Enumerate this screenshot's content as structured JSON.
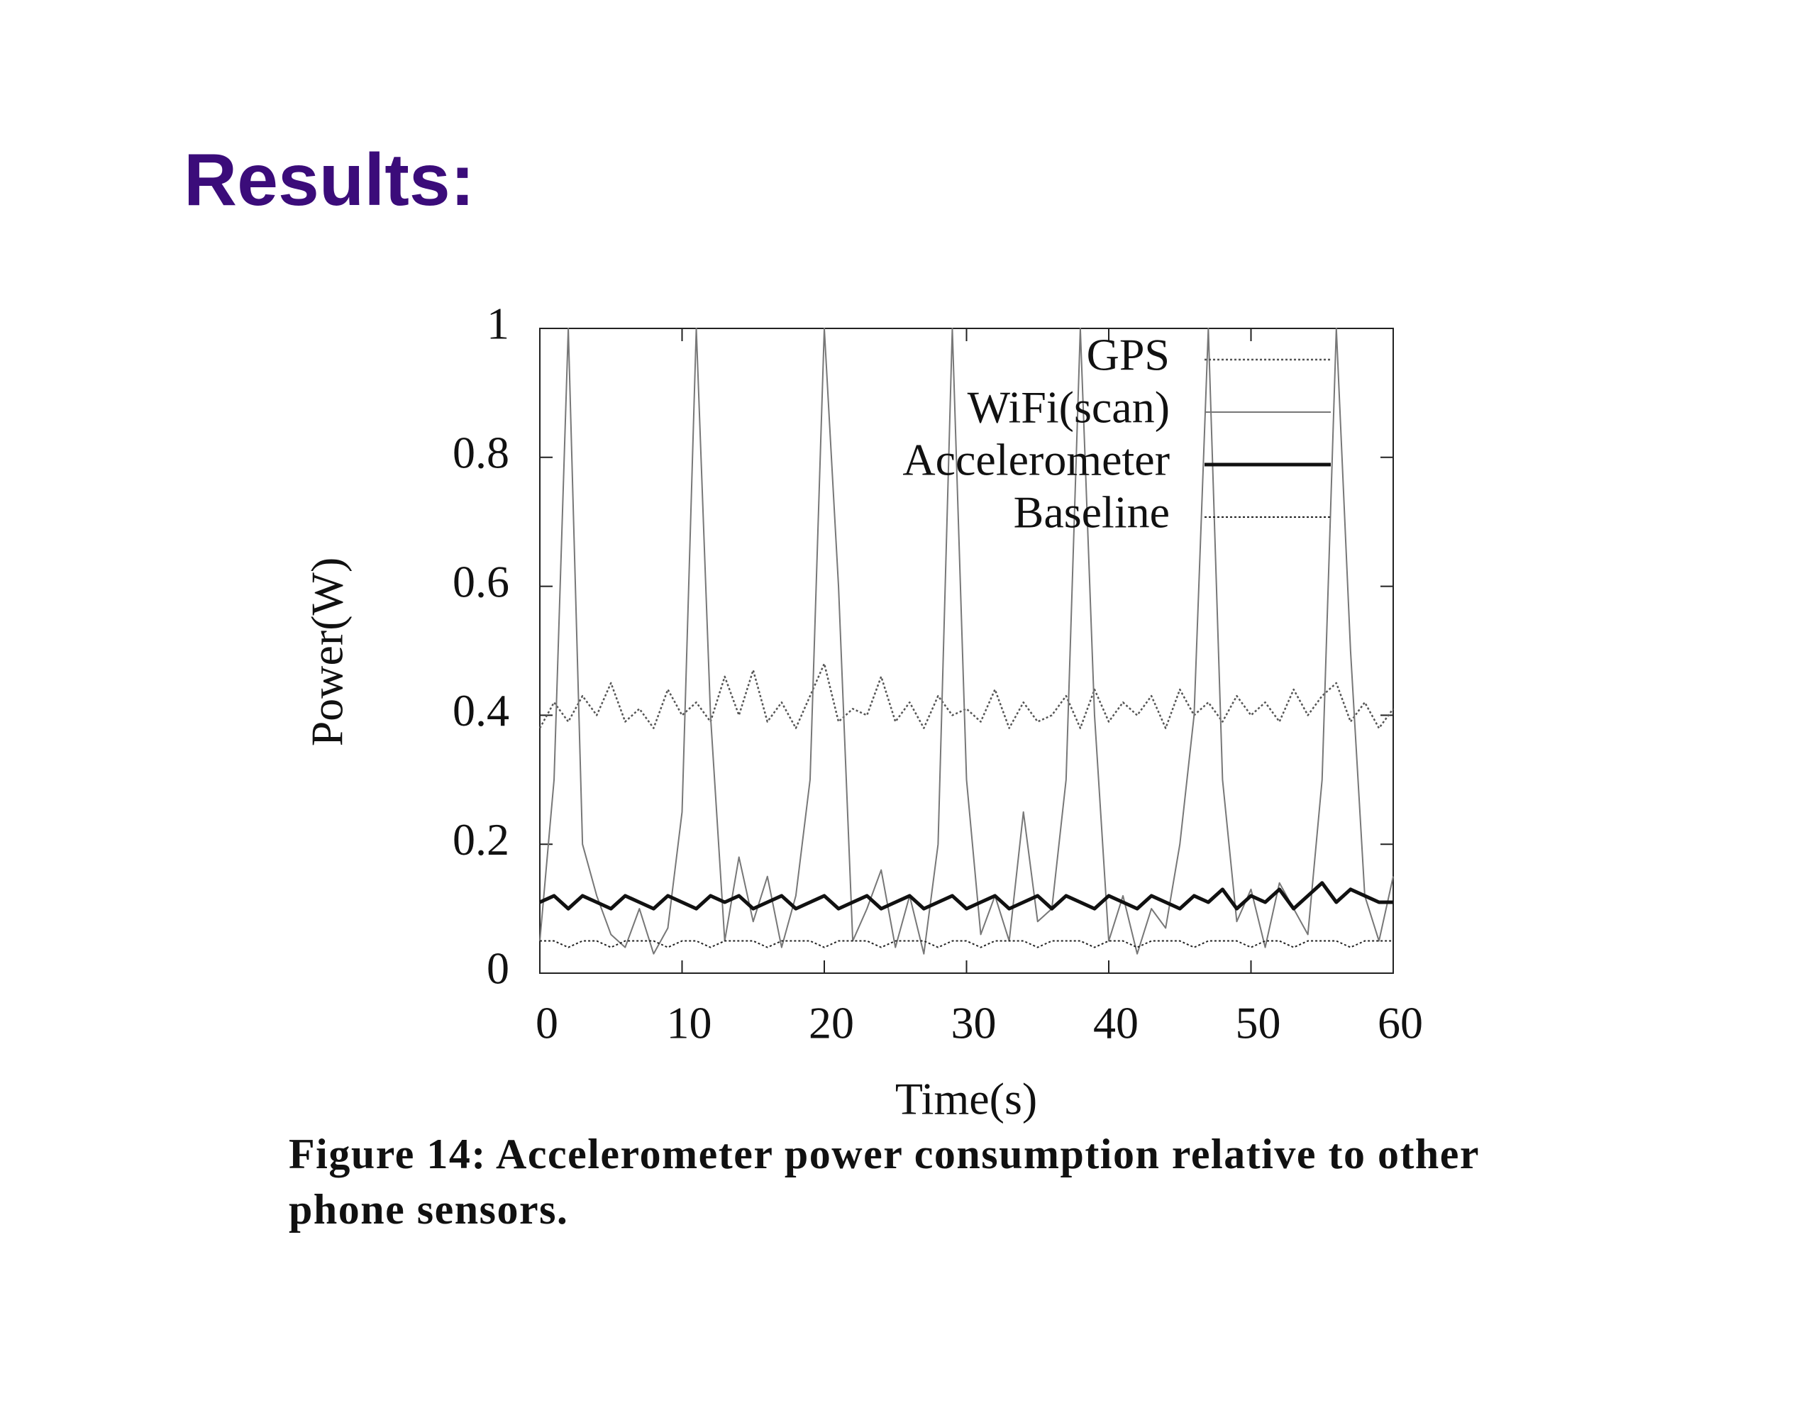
{
  "slide_title": "Results:",
  "caption": "Figure 14: Accelerometer power consumption relative to other phone sensors.",
  "chart_data": {
    "type": "line",
    "xlabel": "Time(s)",
    "ylabel": "Power(W)",
    "x": [
      0,
      1,
      2,
      3,
      4,
      5,
      6,
      7,
      8,
      9,
      10,
      11,
      12,
      13,
      14,
      15,
      16,
      17,
      18,
      19,
      20,
      21,
      22,
      23,
      24,
      25,
      26,
      27,
      28,
      29,
      30,
      31,
      32,
      33,
      34,
      35,
      36,
      37,
      38,
      39,
      40,
      41,
      42,
      43,
      44,
      45,
      46,
      47,
      48,
      49,
      50,
      51,
      52,
      53,
      54,
      55,
      56,
      57,
      58,
      59,
      60
    ],
    "series": [
      {
        "name": "GPS",
        "color": "#555555",
        "dash": "dotted",
        "values": [
          0.38,
          0.42,
          0.39,
          0.43,
          0.4,
          0.45,
          0.39,
          0.41,
          0.38,
          0.44,
          0.4,
          0.42,
          0.39,
          0.46,
          0.4,
          0.47,
          0.39,
          0.42,
          0.38,
          0.43,
          0.48,
          0.39,
          0.41,
          0.4,
          0.46,
          0.39,
          0.42,
          0.38,
          0.43,
          0.4,
          0.41,
          0.39,
          0.44,
          0.38,
          0.42,
          0.39,
          0.4,
          0.43,
          0.38,
          0.44,
          0.39,
          0.42,
          0.4,
          0.43,
          0.38,
          0.44,
          0.4,
          0.42,
          0.39,
          0.43,
          0.4,
          0.42,
          0.39,
          0.44,
          0.4,
          0.43,
          0.45,
          0.39,
          0.42,
          0.38,
          0.41
        ]
      },
      {
        "name": "WiFi(scan)",
        "color": "#777777",
        "dash": "solid",
        "values": [
          0.05,
          0.3,
          1,
          0.2,
          0.12,
          0.06,
          0.04,
          0.1,
          0.03,
          0.07,
          0.25,
          1,
          0.4,
          0.05,
          0.18,
          0.08,
          0.15,
          0.04,
          0.12,
          0.3,
          1,
          0.6,
          0.05,
          0.1,
          0.16,
          0.04,
          0.12,
          0.03,
          0.2,
          1,
          0.3,
          0.06,
          0.12,
          0.05,
          0.25,
          0.08,
          0.1,
          0.3,
          1,
          0.4,
          0.05,
          0.12,
          0.03,
          0.1,
          0.07,
          0.2,
          0.4,
          1,
          0.3,
          0.08,
          0.13,
          0.04,
          0.14,
          0.1,
          0.06,
          0.3,
          1,
          0.5,
          0.12,
          0.05,
          0.15
        ]
      },
      {
        "name": "Accelerometer",
        "color": "#111111",
        "dash": "solid",
        "values": [
          0.11,
          0.12,
          0.1,
          0.12,
          0.11,
          0.1,
          0.12,
          0.11,
          0.1,
          0.12,
          0.11,
          0.1,
          0.12,
          0.11,
          0.12,
          0.1,
          0.11,
          0.12,
          0.1,
          0.11,
          0.12,
          0.1,
          0.11,
          0.12,
          0.1,
          0.11,
          0.12,
          0.1,
          0.11,
          0.12,
          0.1,
          0.11,
          0.12,
          0.1,
          0.11,
          0.12,
          0.1,
          0.12,
          0.11,
          0.1,
          0.12,
          0.11,
          0.1,
          0.12,
          0.11,
          0.1,
          0.12,
          0.11,
          0.13,
          0.1,
          0.12,
          0.11,
          0.13,
          0.1,
          0.12,
          0.14,
          0.11,
          0.13,
          0.12,
          0.11,
          0.11
        ]
      },
      {
        "name": "Baseline",
        "color": "#222222",
        "dash": "dotted",
        "values": [
          0.05,
          0.05,
          0.04,
          0.05,
          0.05,
          0.04,
          0.05,
          0.05,
          0.05,
          0.04,
          0.05,
          0.05,
          0.04,
          0.05,
          0.05,
          0.05,
          0.04,
          0.05,
          0.05,
          0.05,
          0.04,
          0.05,
          0.05,
          0.05,
          0.04,
          0.05,
          0.05,
          0.05,
          0.04,
          0.05,
          0.05,
          0.04,
          0.05,
          0.05,
          0.05,
          0.04,
          0.05,
          0.05,
          0.05,
          0.04,
          0.05,
          0.05,
          0.04,
          0.05,
          0.05,
          0.05,
          0.04,
          0.05,
          0.05,
          0.05,
          0.04,
          0.05,
          0.05,
          0.04,
          0.05,
          0.05,
          0.05,
          0.04,
          0.05,
          0.05,
          0.05
        ]
      }
    ],
    "xlim": [
      0,
      60
    ],
    "xticks": [
      0,
      10,
      20,
      30,
      40,
      50,
      60
    ],
    "ylim": [
      0,
      1
    ],
    "yticks": [
      0,
      0.2,
      0.4,
      0.6,
      0.8,
      1
    ],
    "legend": "top-right",
    "grid": false
  }
}
